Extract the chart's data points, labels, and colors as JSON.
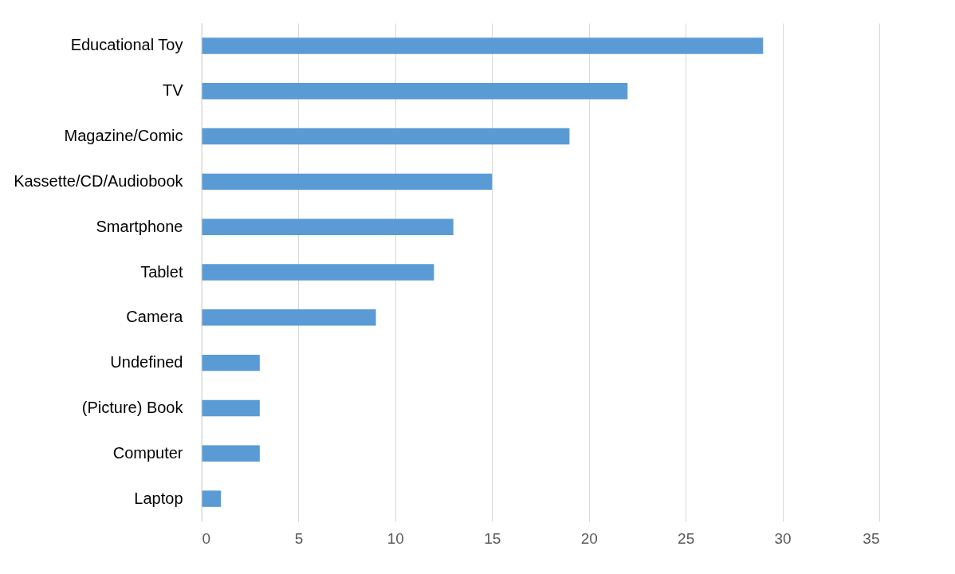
{
  "chart_data": {
    "type": "bar",
    "orientation": "horizontal",
    "categories": [
      "Educational Toy",
      "TV",
      "Magazine/Comic",
      "Kassette/CD/Audiobook",
      "Smartphone",
      "Tablet",
      "Camera",
      "Undefined",
      "(Picture) Book",
      "Computer",
      "Laptop"
    ],
    "values": [
      29,
      22,
      19,
      15,
      13,
      12,
      9,
      3,
      3,
      3,
      1
    ],
    "color": "#5b9bd5",
    "xlim": [
      0,
      35
    ],
    "xticks": [
      0,
      5,
      10,
      15,
      20,
      25,
      30,
      35
    ],
    "grid": "x"
  }
}
